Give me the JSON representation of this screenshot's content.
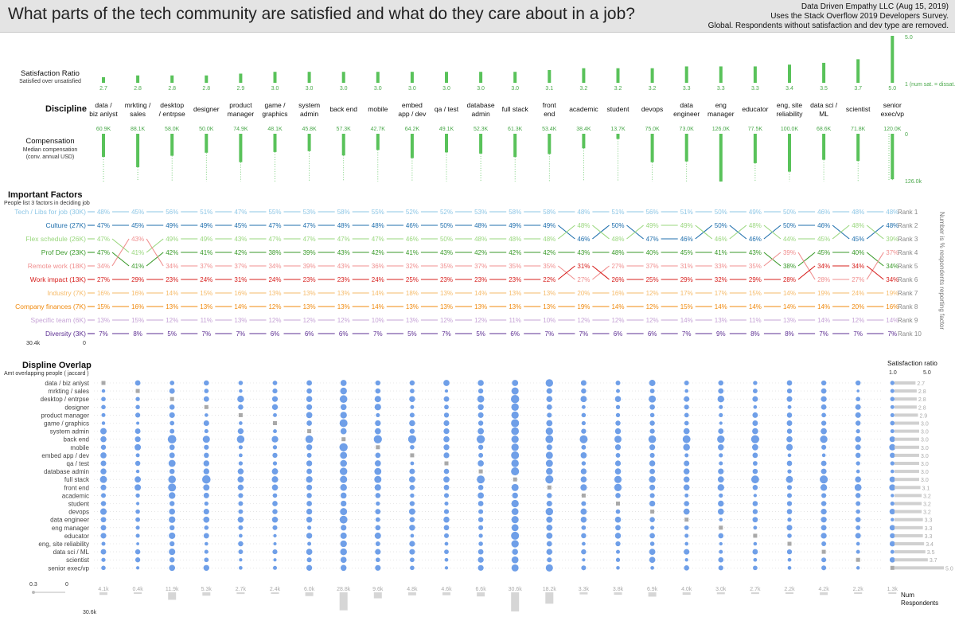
{
  "header": {
    "title": "What parts of the tech community are satisfied and what do they care about in a job?",
    "credit_line1": "Data Driven Empathy LLC (Aug 15, 2019)",
    "credit_line2": "Uses the Stack Overflow 2019 Developers Survey.",
    "credit_line3": "Global. Respondents without satisfaction and dev type are removed."
  },
  "chart_data": {
    "type": "table",
    "disciplines": [
      {
        "label": [
          "data /",
          "biz anlyst"
        ],
        "short": "data / biz anlyst",
        "sat": 2.7,
        "comp": "60.9K",
        "comp_val": 60.9,
        "resp": "4.1k",
        "resp_val": 4.1
      },
      {
        "label": [
          "mrkting /",
          "sales"
        ],
        "short": "mrkting / sales",
        "sat": 2.8,
        "comp": "88.1K",
        "comp_val": 88.1,
        "resp": "0.4k",
        "resp_val": 0.4
      },
      {
        "label": [
          "desktop",
          "/ entrpse"
        ],
        "short": "desktop / entrpse",
        "sat": 2.8,
        "comp": "58.0K",
        "comp_val": 58.0,
        "resp": "11.9k",
        "resp_val": 11.9
      },
      {
        "label": [
          "designer"
        ],
        "short": "designer",
        "sat": 2.8,
        "comp": "50.0K",
        "comp_val": 50.0,
        "resp": "5.3k",
        "resp_val": 5.3
      },
      {
        "label": [
          "product",
          "manager"
        ],
        "short": "product manager",
        "sat": 2.9,
        "comp": "74.9K",
        "comp_val": 74.9,
        "resp": "2.7k",
        "resp_val": 2.7
      },
      {
        "label": [
          "game /",
          "graphics"
        ],
        "short": "game / graphics",
        "sat": 3.0,
        "comp": "48.1K",
        "comp_val": 48.1,
        "resp": "2.4k",
        "resp_val": 2.4
      },
      {
        "label": [
          "system",
          "admin"
        ],
        "short": "system admin",
        "sat": 3.0,
        "comp": "45.8K",
        "comp_val": 45.8,
        "resp": "6.0k",
        "resp_val": 6.0
      },
      {
        "label": [
          "back end"
        ],
        "short": "back end",
        "sat": 3.0,
        "comp": "57.3K",
        "comp_val": 57.3,
        "resp": "28.8k",
        "resp_val": 28.8
      },
      {
        "label": [
          "mobile"
        ],
        "short": "mobile",
        "sat": 3.0,
        "comp": "42.7K",
        "comp_val": 42.7,
        "resp": "9.6k",
        "resp_val": 9.6
      },
      {
        "label": [
          "embed",
          "app / dev"
        ],
        "short": "embed app / dev",
        "sat": 3.0,
        "comp": "64.2K",
        "comp_val": 64.2,
        "resp": "4.8k",
        "resp_val": 4.8
      },
      {
        "label": [
          "qa / test"
        ],
        "short": "qa / test",
        "sat": 3.0,
        "comp": "49.1K",
        "comp_val": 49.1,
        "resp": "4.6k",
        "resp_val": 4.6
      },
      {
        "label": [
          "database",
          "admin"
        ],
        "short": "database admin",
        "sat": 3.0,
        "comp": "52.3K",
        "comp_val": 52.3,
        "resp": "6.6k",
        "resp_val": 6.6
      },
      {
        "label": [
          "full stack"
        ],
        "short": "full stack",
        "sat": 3.0,
        "comp": "61.3K",
        "comp_val": 61.3,
        "resp": "30.6k",
        "resp_val": 30.6
      },
      {
        "label": [
          "front",
          "end"
        ],
        "short": "front end",
        "sat": 3.1,
        "comp": "53.4K",
        "comp_val": 53.4,
        "resp": "18.2k",
        "resp_val": 18.2
      },
      {
        "label": [
          "academic"
        ],
        "short": "academic",
        "sat": 3.2,
        "comp": "38.4K",
        "comp_val": 38.4,
        "resp": "3.3k",
        "resp_val": 3.3
      },
      {
        "label": [
          "student"
        ],
        "short": "student",
        "sat": 3.2,
        "comp": "13.7K",
        "comp_val": 13.7,
        "resp": "3.8k",
        "resp_val": 3.8
      },
      {
        "label": [
          "devops"
        ],
        "short": "devops",
        "sat": 3.2,
        "comp": "75.0K",
        "comp_val": 75.0,
        "resp": "6.9k",
        "resp_val": 6.9
      },
      {
        "label": [
          "data",
          "engineer"
        ],
        "short": "data engineer",
        "sat": 3.3,
        "comp": "73.0K",
        "comp_val": 73.0,
        "resp": "4.0k",
        "resp_val": 4.0
      },
      {
        "label": [
          "eng",
          "manager"
        ],
        "short": "eng manager",
        "sat": 3.3,
        "comp": "126.0K",
        "comp_val": 126.0,
        "resp": "3.0k",
        "resp_val": 3.0
      },
      {
        "label": [
          "educator"
        ],
        "short": "educator",
        "sat": 3.3,
        "comp": "77.5K",
        "comp_val": 77.5,
        "resp": "2.7k",
        "resp_val": 2.7
      },
      {
        "label": [
          "eng, site",
          "reliability"
        ],
        "short": "eng, site reliability",
        "sat": 3.4,
        "comp": "100.0K",
        "comp_val": 100.0,
        "resp": "2.2k",
        "resp_val": 2.2
      },
      {
        "label": [
          "data sci /",
          "ML"
        ],
        "short": "data sci / ML",
        "sat": 3.5,
        "comp": "68.6K",
        "comp_val": 68.6,
        "resp": "4.2k",
        "resp_val": 4.2
      },
      {
        "label": [
          "scientist"
        ],
        "short": "scientist",
        "sat": 3.7,
        "comp": "71.8K",
        "comp_val": 71.8,
        "resp": "2.2k",
        "resp_val": 2.2
      },
      {
        "label": [
          "senior",
          "exec/vp"
        ],
        "short": "senior exec/vp",
        "sat": 5.0,
        "comp": "120.0K",
        "comp_val": 120.0,
        "resp": "1.3k",
        "resp_val": 1.3
      }
    ],
    "factors": [
      {
        "name": "Tech / Libs for job (30K)",
        "color": "#8ec7e6",
        "values": [
          48,
          45,
          56,
          51,
          47,
          55,
          53,
          58,
          55,
          52,
          52,
          53,
          58,
          58,
          48,
          51,
          56,
          51,
          50,
          49,
          50,
          46,
          48,
          48
        ]
      },
      {
        "name": "Culture (27K)",
        "color": "#1f6fad",
        "values": [
          47,
          45,
          49,
          49,
          45,
          47,
          47,
          48,
          48,
          46,
          50,
          48,
          49,
          49,
          46,
          50,
          47,
          46,
          50,
          46,
          50,
          46,
          45,
          48
        ]
      },
      {
        "name": "Flex schedule (26K)",
        "color": "#9ad77e",
        "values": [
          47,
          41,
          49,
          49,
          43,
          47,
          47,
          47,
          47,
          46,
          50,
          48,
          48,
          48,
          48,
          48,
          49,
          49,
          46,
          48,
          44,
          45,
          48,
          39
        ]
      },
      {
        "name": "Prof Dev (23K)",
        "color": "#3a9a2a",
        "values": [
          47,
          41,
          42,
          41,
          42,
          38,
          39,
          43,
          42,
          41,
          43,
          42,
          42,
          42,
          43,
          48,
          40,
          45,
          41,
          43,
          38,
          45,
          40,
          34
        ]
      },
      {
        "name": "Remote work (18K)",
        "color": "#f08f8f",
        "values": [
          34,
          43,
          34,
          37,
          37,
          34,
          39,
          43,
          36,
          32,
          35,
          37,
          35,
          35,
          27,
          27,
          37,
          31,
          33,
          35,
          39,
          28,
          27,
          37
        ]
      },
      {
        "name": "Work impact (13K)",
        "color": "#d7201e",
        "values": [
          27,
          29,
          23,
          24,
          31,
          24,
          23,
          23,
          24,
          25,
          23,
          23,
          23,
          22,
          31,
          26,
          25,
          29,
          32,
          29,
          28,
          34,
          34,
          34
        ]
      },
      {
        "name": "Industry (7K)",
        "color": "#f6bb6a",
        "values": [
          16,
          16,
          14,
          15,
          16,
          13,
          13,
          13,
          14,
          18,
          13,
          14,
          13,
          13,
          20,
          16,
          12,
          17,
          17,
          15,
          14,
          19,
          24,
          19
        ]
      },
      {
        "name": "Company finances (7K)",
        "color": "#f08a0e",
        "values": [
          15,
          16,
          13,
          13,
          14,
          12,
          13,
          13,
          14,
          13,
          13,
          13,
          13,
          13,
          19,
          14,
          12,
          15,
          14,
          14,
          14,
          14,
          20,
          16
        ]
      },
      {
        "name": "Specific team (6K)",
        "color": "#c6a3d6",
        "values": [
          13,
          15,
          12,
          11,
          13,
          12,
          12,
          12,
          10,
          13,
          12,
          12,
          11,
          10,
          12,
          12,
          12,
          14,
          13,
          11,
          13,
          14,
          12,
          14
        ]
      },
      {
        "name": "Diversity (3K)",
        "color": "#5d2f93",
        "values": [
          7,
          8,
          5,
          7,
          7,
          6,
          6,
          6,
          7,
          5,
          7,
          5,
          6,
          7,
          7,
          6,
          6,
          7,
          9,
          8,
          8,
          7,
          7,
          7
        ]
      }
    ],
    "ranks": [
      "Rank 1",
      "Rank 2",
      "Rank 3",
      "Rank 4",
      "Rank 5",
      "Rank 6",
      "Rank 7",
      "Rank 8",
      "Rank 9",
      "Rank 10"
    ]
  },
  "labels": {
    "satisfaction_title": "Satisfaction Ratio",
    "satisfaction_sub": "Satisfied over unsatisfied",
    "sat_scale_max": "5.0",
    "sat_scale_min": "1 (num sat. = dissat.)",
    "discipline_title": "Discipline",
    "comp_title": "Compensation",
    "comp_sub1": "Median compensation",
    "comp_sub2": "(conv. annual USD)",
    "comp_scale_top": "0",
    "comp_scale_bottom": "126.0k",
    "factors_title": "Important Factors",
    "factors_sub": "People list 3 factors in deciding job",
    "factors_axis_left": "30.4k",
    "factors_axis_zero": "0",
    "factors_vertical": "Number is % respondents reporting factor",
    "overlap_title": "Displine Overlap",
    "overlap_sub": "Amt overlapping people ( jaccard )",
    "sat_ratio_title": "Satisfaction ratio",
    "sat_ratio_min": "1.0",
    "sat_ratio_max": "5.0",
    "size_legend_small": "0.3",
    "size_legend_zero": "0",
    "resp_scale": "30.6k",
    "num_resp_1": "Num",
    "num_resp_2": "Respondents"
  },
  "colors": {
    "green": "#59c25a",
    "blue": "#6f9fe8",
    "gray": "#a9a9a9"
  }
}
